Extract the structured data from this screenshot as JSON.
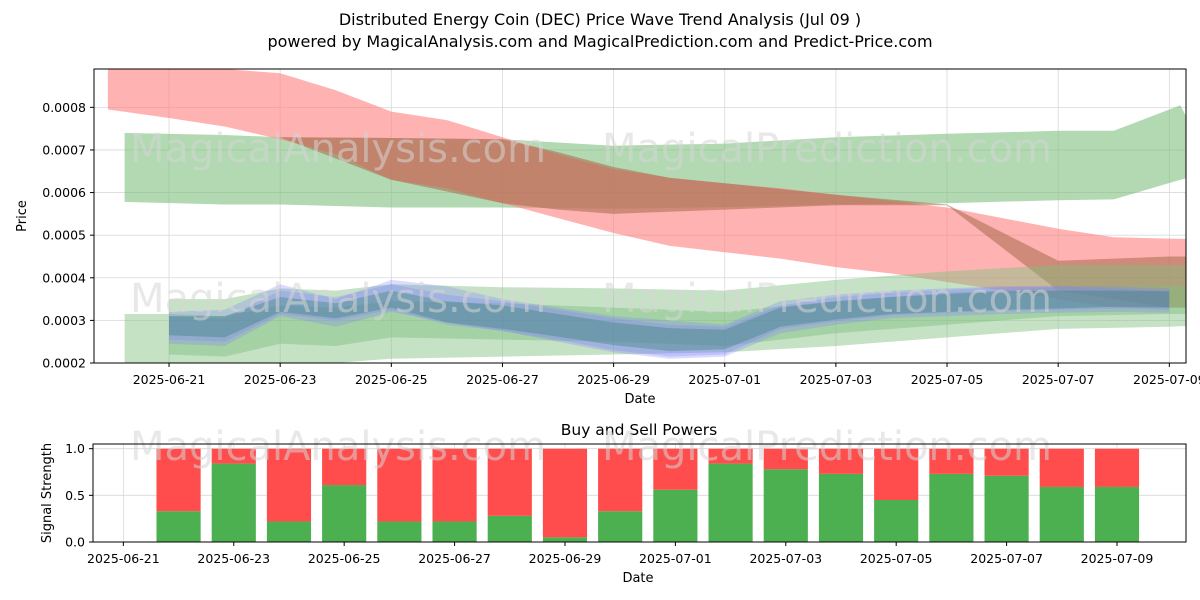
{
  "title_line1": "Distributed Energy Coin (DEC) Price Wave Trend Analysis (Jul 09 )",
  "title_line2": "powered by MagicalAnalysis.com and MagicalPrediction.com and Predict-Price.com",
  "watermarks": {
    "left": "MagicalAnalysis.com",
    "right": "MagicalPrediction.com"
  },
  "colors": {
    "green_band": "#7fbf7f",
    "red_band": "#ff7f7f",
    "blue_band": "#7f7fff",
    "teal_band": "#2e7d6e",
    "buy": "#4caf50",
    "sell": "#ff4c4c"
  },
  "chart_data": [
    {
      "type": "area",
      "title": "",
      "xlabel": "Date",
      "ylabel": "Price",
      "x_domain": [
        "2025-06-20",
        "2025-07-10"
      ],
      "x_range_days": [
        -0.35,
        19.3
      ],
      "ylim": [
        0.0002,
        0.00089
      ],
      "x_ticks": [
        "2025-06-21",
        "2025-06-23",
        "2025-06-25",
        "2025-06-27",
        "2025-06-29",
        "2025-07-01",
        "2025-07-03",
        "2025-07-05",
        "2025-07-07",
        "2025-07-09"
      ],
      "x_tick_days": [
        1,
        3,
        5,
        7,
        9,
        11,
        13,
        15,
        17,
        19
      ],
      "y_ticks": [
        "0.0002",
        "0.0003",
        "0.0004",
        "0.0005",
        "0.0006",
        "0.0007",
        "0.0008"
      ],
      "y_tick_values": [
        0.0002,
        0.0003,
        0.0004,
        0.0005,
        0.0006,
        0.0007,
        0.0008
      ],
      "bands": [
        {
          "name": "long-term green channel",
          "color": "green",
          "opacity": 0.6,
          "x": [
            0.2,
            2,
            3,
            5,
            7,
            9,
            11,
            13,
            15,
            17,
            18,
            19.2,
            19.8
          ],
          "upper": [
            0.00074,
            0.000735,
            0.00073,
            0.000728,
            0.000725,
            0.00071,
            0.000715,
            0.00073,
            0.000738,
            0.000745,
            0.000745,
            0.000805,
            0.00065
          ],
          "lower": [
            0.000578,
            0.000572,
            0.000572,
            0.000565,
            0.000565,
            0.000562,
            0.000566,
            0.000572,
            0.000575,
            0.000582,
            0.000584,
            0.00063,
            0.00065
          ]
        },
        {
          "name": "falling red channel",
          "color": "red",
          "opacity": 0.6,
          "x": [
            -0.1,
            1,
            2,
            3,
            4,
            5,
            6,
            7,
            8,
            9,
            10,
            11,
            12,
            13,
            14,
            15,
            16,
            17,
            18,
            19,
            19.8
          ],
          "upper": [
            0.0009,
            0.00089,
            0.00089,
            0.00088,
            0.00084,
            0.00079,
            0.00077,
            0.00073,
            0.00069,
            0.000655,
            0.000635,
            0.000622,
            0.00061,
            0.000595,
            0.00058,
            0.000565,
            0.00054,
            0.000515,
            0.000495,
            0.000492,
            0.00049
          ],
          "lower": [
            0.000795,
            0.000775,
            0.000755,
            0.000725,
            0.00069,
            0.00063,
            0.00061,
            0.000575,
            0.00054,
            0.000505,
            0.000475,
            0.00046,
            0.000445,
            0.000425,
            0.00041,
            0.00039,
            0.00037,
            0.00035,
            0.00033,
            0.00033,
            0.00033
          ]
        },
        {
          "name": "brown overlap strip",
          "color": "brown",
          "opacity": 0.55,
          "x": [
            2,
            3,
            5,
            7,
            8,
            9,
            10,
            11,
            13,
            15,
            17,
            19,
            19.8
          ],
          "upper": [
            0.00073,
            0.00073,
            0.000728,
            0.000725,
            0.000695,
            0.00066,
            0.000635,
            0.000622,
            0.000595,
            0.000572,
            0.00044,
            0.00045,
            0.00045
          ],
          "lower": [
            0.00073,
            0.00073,
            0.00063,
            0.000575,
            0.00056,
            0.00055,
            0.000555,
            0.00056,
            0.00057,
            0.00057,
            0.00037,
            0.00033,
            0.00033
          ]
        },
        {
          "name": "lower wide green channel",
          "color": "green",
          "opacity": 0.45,
          "x": [
            0.2,
            1,
            2,
            3,
            4,
            5,
            7,
            9,
            11,
            13,
            15,
            17,
            19,
            19.8
          ],
          "upper": [
            0.000315,
            0.000315,
            0.00031,
            0.000335,
            0.00033,
            0.000345,
            0.00034,
            0.00033,
            0.00032,
            0.000345,
            0.000365,
            0.000378,
            0.00038,
            0.00038
          ],
          "lower": [
            0.0002,
            0.0002,
            0.0002,
            0.0002,
            0.0002,
            0.00021,
            0.000215,
            0.00022,
            0.000225,
            0.00024,
            0.00026,
            0.00028,
            0.000285,
            0.00029
          ]
        },
        {
          "name": "mid green channel",
          "color": "green",
          "opacity": 0.45,
          "x": [
            1,
            2,
            3,
            4,
            5,
            7,
            9,
            11,
            13,
            15,
            17,
            19,
            19.8
          ],
          "upper": [
            0.00035,
            0.00035,
            0.000375,
            0.00037,
            0.000385,
            0.000378,
            0.000375,
            0.00037,
            0.000395,
            0.000415,
            0.00043,
            0.00043,
            0.00043
          ],
          "lower": [
            0.00022,
            0.000215,
            0.000245,
            0.00024,
            0.00026,
            0.000255,
            0.00025,
            0.00024,
            0.00027,
            0.00029,
            0.00031,
            0.000315,
            0.000315
          ]
        },
        {
          "name": "blue wave band 1",
          "color": "blue",
          "opacity": 0.28,
          "x": [
            1,
            2,
            3,
            4,
            5,
            6,
            7,
            8,
            9,
            10,
            11,
            12,
            13,
            14,
            15,
            16,
            17,
            18,
            19
          ],
          "upper": [
            0.00032,
            0.000325,
            0.000385,
            0.00035,
            0.000395,
            0.00038,
            0.00035,
            0.00033,
            0.00031,
            0.0003,
            0.00029,
            0.000345,
            0.00036,
            0.00037,
            0.000375,
            0.00038,
            0.00038,
            0.000375,
            0.00037
          ],
          "lower": [
            0.000245,
            0.00024,
            0.00031,
            0.000285,
            0.00032,
            0.000295,
            0.000275,
            0.00025,
            0.000225,
            0.00021,
            0.000215,
            0.00027,
            0.00029,
            0.000305,
            0.00031,
            0.000315,
            0.000318,
            0.00032,
            0.000318
          ]
        },
        {
          "name": "blue wave band 2",
          "color": "blue",
          "opacity": 0.28,
          "x": [
            1,
            2,
            3,
            4,
            5,
            6,
            7,
            8,
            9,
            10,
            11,
            12,
            13,
            14,
            15,
            16,
            17,
            18,
            19
          ],
          "upper": [
            0.00031,
            0.000305,
            0.00037,
            0.000355,
            0.000385,
            0.00036,
            0.000345,
            0.000325,
            0.000305,
            0.00029,
            0.000285,
            0.000335,
            0.000355,
            0.000365,
            0.000372,
            0.000378,
            0.00038,
            0.00038,
            0.000375
          ],
          "lower": [
            0.000255,
            0.00025,
            0.000315,
            0.0003,
            0.000325,
            0.00029,
            0.000275,
            0.000255,
            0.00023,
            0.000215,
            0.00022,
            0.00028,
            0.000298,
            0.000312,
            0.000318,
            0.000322,
            0.000325,
            0.000328,
            0.000325
          ]
        },
        {
          "name": "teal core band",
          "color": "teal",
          "opacity": 0.35,
          "x": [
            1,
            2,
            3,
            4,
            5,
            6,
            7,
            8,
            9,
            10,
            11,
            12,
            13,
            14,
            15,
            16,
            17,
            18,
            19
          ],
          "upper": [
            0.00031,
            0.00031,
            0.000355,
            0.00034,
            0.00037,
            0.000345,
            0.000335,
            0.000315,
            0.000295,
            0.000282,
            0.000278,
            0.00033,
            0.000345,
            0.000355,
            0.000362,
            0.000368,
            0.00037,
            0.00037,
            0.000368
          ],
          "lower": [
            0.000265,
            0.00026,
            0.00032,
            0.000305,
            0.00033,
            0.000295,
            0.00028,
            0.000262,
            0.000242,
            0.000228,
            0.000232,
            0.000285,
            0.000302,
            0.000315,
            0.00032,
            0.000325,
            0.000328,
            0.000332,
            0.00033
          ]
        }
      ]
    },
    {
      "type": "bar",
      "title": "Buy and Sell Powers",
      "xlabel": "Date",
      "ylabel": "Signal Strength",
      "ylim": [
        0,
        1.05
      ],
      "y_ticks": [
        "0.0",
        "0.5",
        "1.0"
      ],
      "y_tick_values": [
        0,
        0.5,
        1.0
      ],
      "x_ticks": [
        "2025-06-21",
        "2025-06-23",
        "2025-06-25",
        "2025-06-27",
        "2025-06-29",
        "2025-07-01",
        "2025-07-03",
        "2025-07-05",
        "2025-07-07",
        "2025-07-09"
      ],
      "x_tick_days": [
        0,
        2,
        4,
        6,
        8,
        10,
        12,
        14,
        16,
        18
      ],
      "x_range_days": [
        -0.55,
        19.25
      ],
      "bar_days": [
        1,
        2,
        3,
        4,
        5,
        6,
        7,
        8,
        9,
        10,
        11,
        12,
        13,
        14,
        15,
        16,
        17,
        18
      ],
      "categories": [
        "2025-06-22",
        "2025-06-23",
        "2025-06-24",
        "2025-06-25",
        "2025-06-26",
        "2025-06-27",
        "2025-06-28",
        "2025-06-29",
        "2025-06-30",
        "2025-07-01",
        "2025-07-02",
        "2025-07-03",
        "2025-07-04",
        "2025-07-05",
        "2025-07-06",
        "2025-07-07",
        "2025-07-08",
        "2025-07-09"
      ],
      "series": [
        {
          "name": "Buy",
          "values": [
            0.33,
            0.84,
            0.22,
            0.61,
            0.22,
            0.22,
            0.28,
            0.05,
            0.33,
            0.56,
            0.84,
            0.78,
            0.73,
            0.45,
            0.73,
            0.71,
            0.59,
            0.59
          ]
        },
        {
          "name": "Sell",
          "values": [
            0.67,
            0.16,
            0.78,
            0.39,
            0.78,
            0.78,
            0.72,
            0.95,
            0.67,
            0.44,
            0.16,
            0.22,
            0.27,
            0.55,
            0.27,
            0.29,
            0.41,
            0.41
          ]
        }
      ]
    }
  ]
}
